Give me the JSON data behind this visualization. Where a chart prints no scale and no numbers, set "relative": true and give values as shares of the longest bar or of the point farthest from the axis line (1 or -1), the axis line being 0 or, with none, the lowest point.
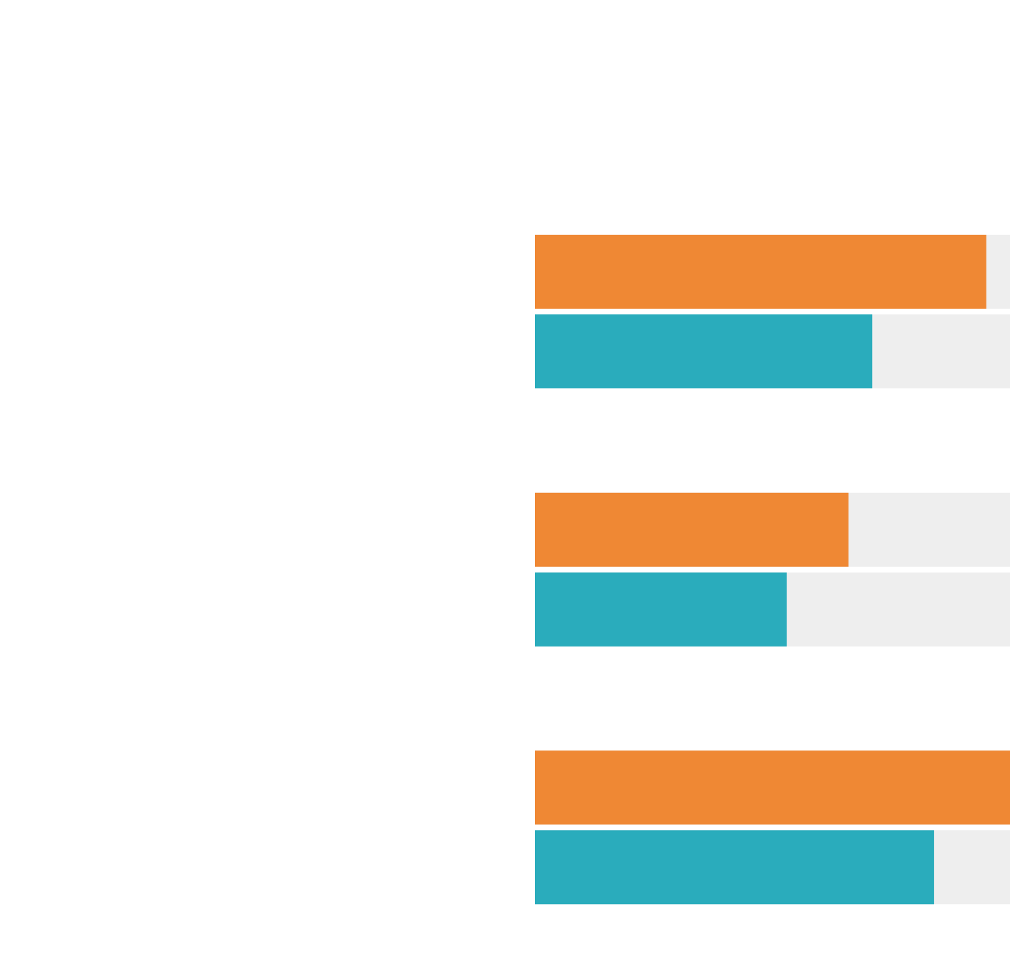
{
  "chart_data": {
    "type": "bar",
    "orientation": "horizontal",
    "relative": true,
    "categories": [
      null,
      null,
      null
    ],
    "series": [
      {
        "color": "#ef8834",
        "values": [
          0.95,
          0.66,
          1
        ]
      },
      {
        "color": "#2aacbc",
        "values": [
          0.71,
          0.53,
          0.84
        ]
      }
    ],
    "legend": false,
    "grid": false
  }
}
